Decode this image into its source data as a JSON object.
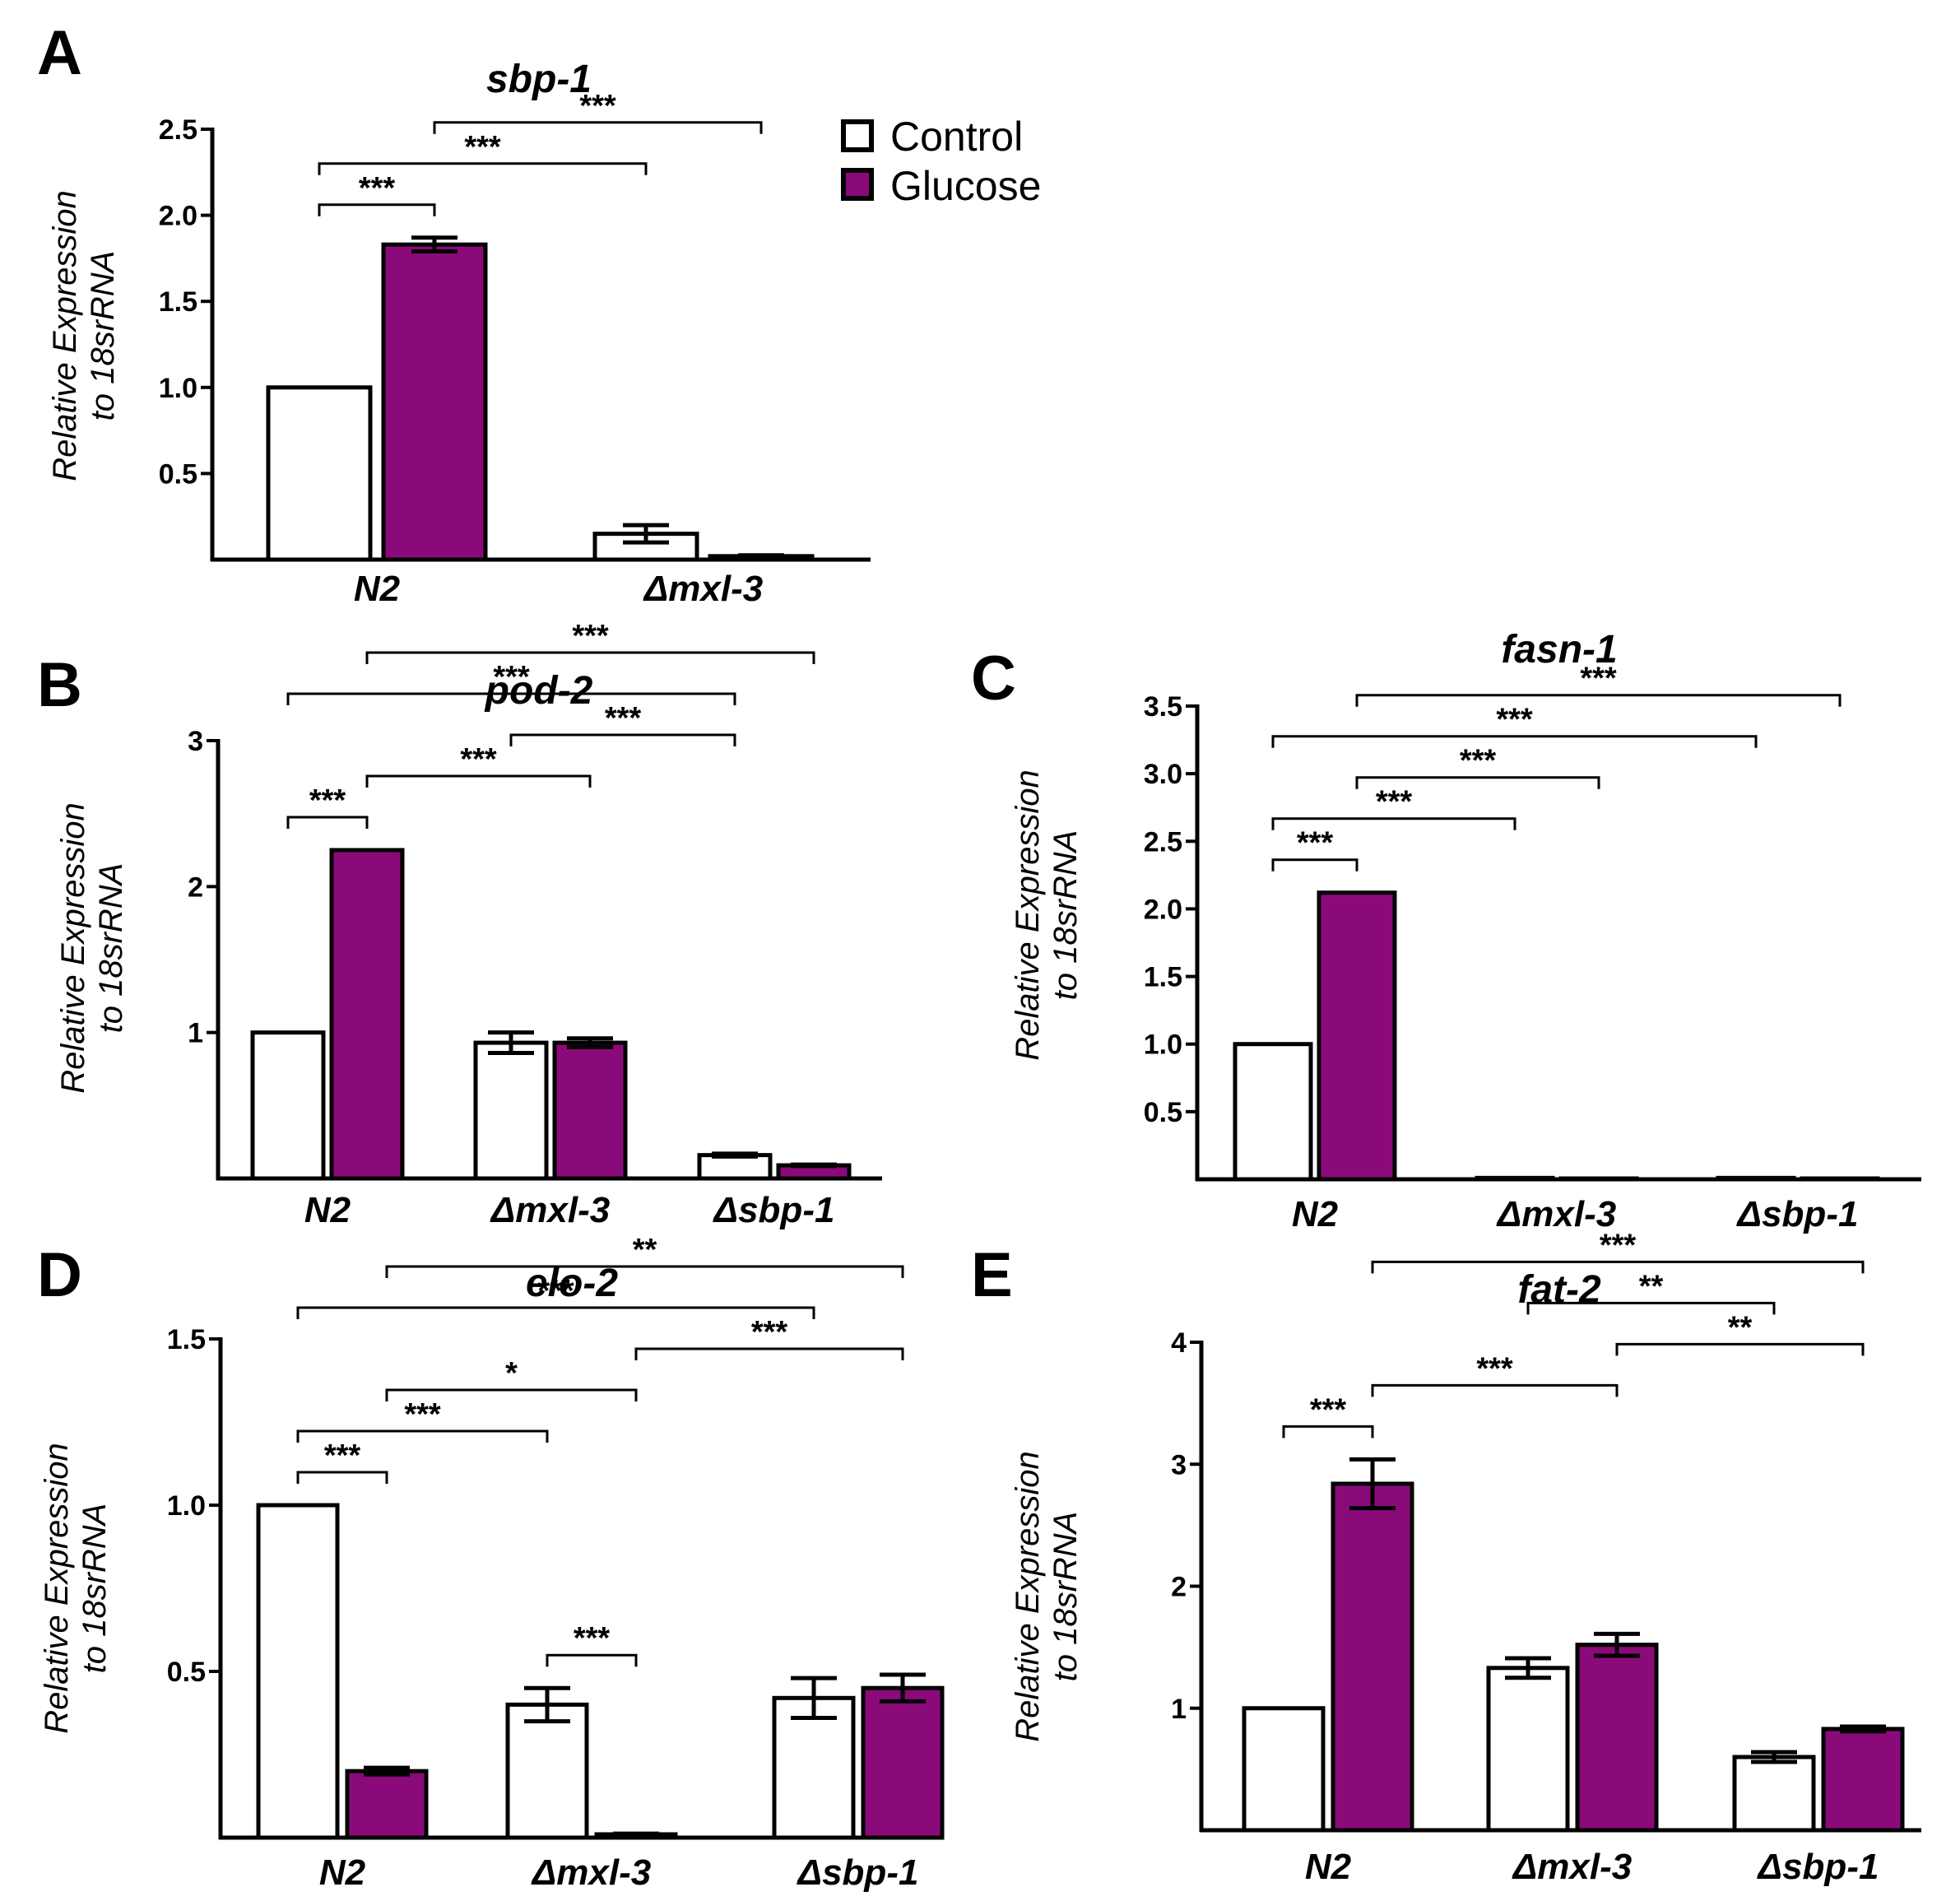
{
  "figure": {
    "legend": [
      {
        "label": "Control",
        "color": "#ffffff"
      },
      {
        "label": "Glucose",
        "color": "#8b0a7a"
      }
    ]
  },
  "chart_data": [
    {
      "panel": "A",
      "type": "bar",
      "title": "sbp-1",
      "ylabel_line1": "Relative Expression",
      "ylabel_line2": "to 18srRNA",
      "ylim": [
        0,
        2.5
      ],
      "yticks": [
        0.5,
        1.0,
        1.5,
        2.0,
        2.5
      ],
      "tick_decimals": 1,
      "categories": [
        "N2",
        "Δmxl-3"
      ],
      "series": [
        {
          "name": "Control",
          "color": "#ffffff",
          "values": [
            1.0,
            0.15
          ],
          "errors": [
            0,
            0.05
          ]
        },
        {
          "name": "Glucose",
          "color": "#8b0a7a",
          "values": [
            1.83,
            0.02
          ],
          "errors": [
            0.04,
            0.005
          ]
        }
      ],
      "significance": [
        {
          "from": [
            0,
            0
          ],
          "to": [
            1,
            0
          ],
          "label": "***"
        },
        {
          "from": [
            0,
            0
          ],
          "to": [
            0,
            1
          ],
          "label": "***"
        },
        {
          "from": [
            0,
            1
          ],
          "to": [
            1,
            1
          ],
          "label": "***"
        }
      ]
    },
    {
      "panel": "B",
      "type": "bar",
      "title": "pod-2",
      "ylabel_line1": "Relative Expression",
      "ylabel_line2": "to 18srRNA",
      "ylim": [
        0,
        3
      ],
      "yticks": [
        1,
        2,
        3
      ],
      "tick_decimals": 0,
      "categories": [
        "N2",
        "Δmxl-3",
        "Δsbp-1"
      ],
      "series": [
        {
          "name": "Control",
          "color": "#ffffff",
          "values": [
            1.0,
            0.93,
            0.16
          ],
          "errors": [
            0,
            0.07,
            0.01
          ]
        },
        {
          "name": "Glucose",
          "color": "#8b0a7a",
          "values": [
            2.25,
            0.93,
            0.09
          ],
          "errors": [
            0,
            0.03,
            0.005
          ]
        }
      ],
      "significance": [
        {
          "from": [
            0,
            0
          ],
          "to": [
            2,
            0
          ],
          "label": "***"
        },
        {
          "from": [
            0,
            1
          ],
          "to": [
            2,
            1
          ],
          "label": "***"
        },
        {
          "from": [
            0,
            0
          ],
          "to": [
            0,
            1
          ],
          "label": "***"
        },
        {
          "from": [
            0,
            1
          ],
          "to": [
            1,
            1
          ],
          "label": "***"
        },
        {
          "from": [
            1,
            0
          ],
          "to": [
            2,
            0
          ],
          "label": "***"
        }
      ]
    },
    {
      "panel": "C",
      "type": "bar",
      "title": "fasn-1",
      "ylabel_line1": "Relative Expression",
      "ylabel_line2": "to 18srRNA",
      "ylim": [
        0,
        3.5
      ],
      "yticks": [
        0.5,
        1.0,
        1.5,
        2.0,
        2.5,
        3.0,
        3.5
      ],
      "tick_decimals": 1,
      "categories": [
        "N2",
        "Δmxl-3",
        "Δsbp-1"
      ],
      "series": [
        {
          "name": "Control",
          "color": "#ffffff",
          "values": [
            1.0,
            0.01,
            0.01
          ],
          "errors": [
            0,
            0,
            0
          ]
        },
        {
          "name": "Glucose",
          "color": "#8b0a7a",
          "values": [
            2.12,
            0.005,
            0.005
          ],
          "errors": [
            0,
            0,
            0
          ]
        }
      ],
      "significance": [
        {
          "from": [
            0,
            0
          ],
          "to": [
            2,
            0
          ],
          "label": "***"
        },
        {
          "from": [
            0,
            0
          ],
          "to": [
            1,
            0
          ],
          "label": "***"
        },
        {
          "from": [
            0,
            1
          ],
          "to": [
            2,
            1
          ],
          "label": "***"
        },
        {
          "from": [
            0,
            0
          ],
          "to": [
            0,
            1
          ],
          "label": "***"
        },
        {
          "from": [
            0,
            1
          ],
          "to": [
            1,
            1
          ],
          "label": "***"
        }
      ]
    },
    {
      "panel": "D",
      "type": "bar",
      "title": "elo-2",
      "ylabel_line1": "Relative Expression",
      "ylabel_line2": "to 18srRNA",
      "ylim": [
        0,
        1.5
      ],
      "yticks": [
        0.5,
        1.0,
        1.5
      ],
      "tick_decimals": 1,
      "categories": [
        "N2",
        "Δmxl-3",
        "Δsbp-1"
      ],
      "series": [
        {
          "name": "Control",
          "color": "#ffffff",
          "values": [
            1.0,
            0.4,
            0.42
          ],
          "errors": [
            0,
            0.05,
            0.06
          ]
        },
        {
          "name": "Glucose",
          "color": "#8b0a7a",
          "values": [
            0.2,
            0.01,
            0.45
          ],
          "errors": [
            0.01,
            0.002,
            0.04
          ]
        }
      ],
      "significance": [
        {
          "from": [
            0,
            0
          ],
          "to": [
            2,
            0
          ],
          "label": "***"
        },
        {
          "from": [
            0,
            0
          ],
          "to": [
            1,
            0
          ],
          "label": "***"
        },
        {
          "from": [
            0,
            0
          ],
          "to": [
            0,
            1
          ],
          "label": "***"
        },
        {
          "from": [
            0,
            1
          ],
          "to": [
            2,
            1
          ],
          "label": "**"
        },
        {
          "from": [
            0,
            1
          ],
          "to": [
            1,
            1
          ],
          "label": "*"
        },
        {
          "from": [
            1,
            1
          ],
          "to": [
            2,
            1
          ],
          "label": "***"
        },
        {
          "from": [
            1,
            0
          ],
          "to": [
            1,
            1
          ],
          "label": "***"
        }
      ]
    },
    {
      "panel": "E",
      "type": "bar",
      "title": "fat-2",
      "ylabel_line1": "Relative Expression",
      "ylabel_line2": "to 18srRNA",
      "ylim": [
        0,
        4
      ],
      "yticks": [
        1,
        2,
        3,
        4
      ],
      "tick_decimals": 0,
      "categories": [
        "N2",
        "Δmxl-3",
        "Δsbp-1"
      ],
      "series": [
        {
          "name": "Control",
          "color": "#ffffff",
          "values": [
            1.0,
            1.33,
            0.6
          ],
          "errors": [
            0,
            0.08,
            0.04
          ]
        },
        {
          "name": "Glucose",
          "color": "#8b0a7a",
          "values": [
            2.84,
            1.52,
            0.83
          ],
          "errors": [
            0.2,
            0.09,
            0.02
          ]
        }
      ],
      "significance": [
        {
          "from": [
            0,
            1
          ],
          "to": [
            2,
            1
          ],
          "label": "***"
        },
        {
          "from": [
            0,
            0
          ],
          "to": [
            0,
            1
          ],
          "label": "***"
        },
        {
          "from": [
            0,
            1
          ],
          "to": [
            1,
            1
          ],
          "label": "***"
        },
        {
          "from": [
            1,
            1
          ],
          "to": [
            2,
            1
          ],
          "label": "**"
        },
        {
          "from": [
            1,
            0
          ],
          "to": [
            2,
            0
          ],
          "label": "**"
        }
      ]
    }
  ]
}
